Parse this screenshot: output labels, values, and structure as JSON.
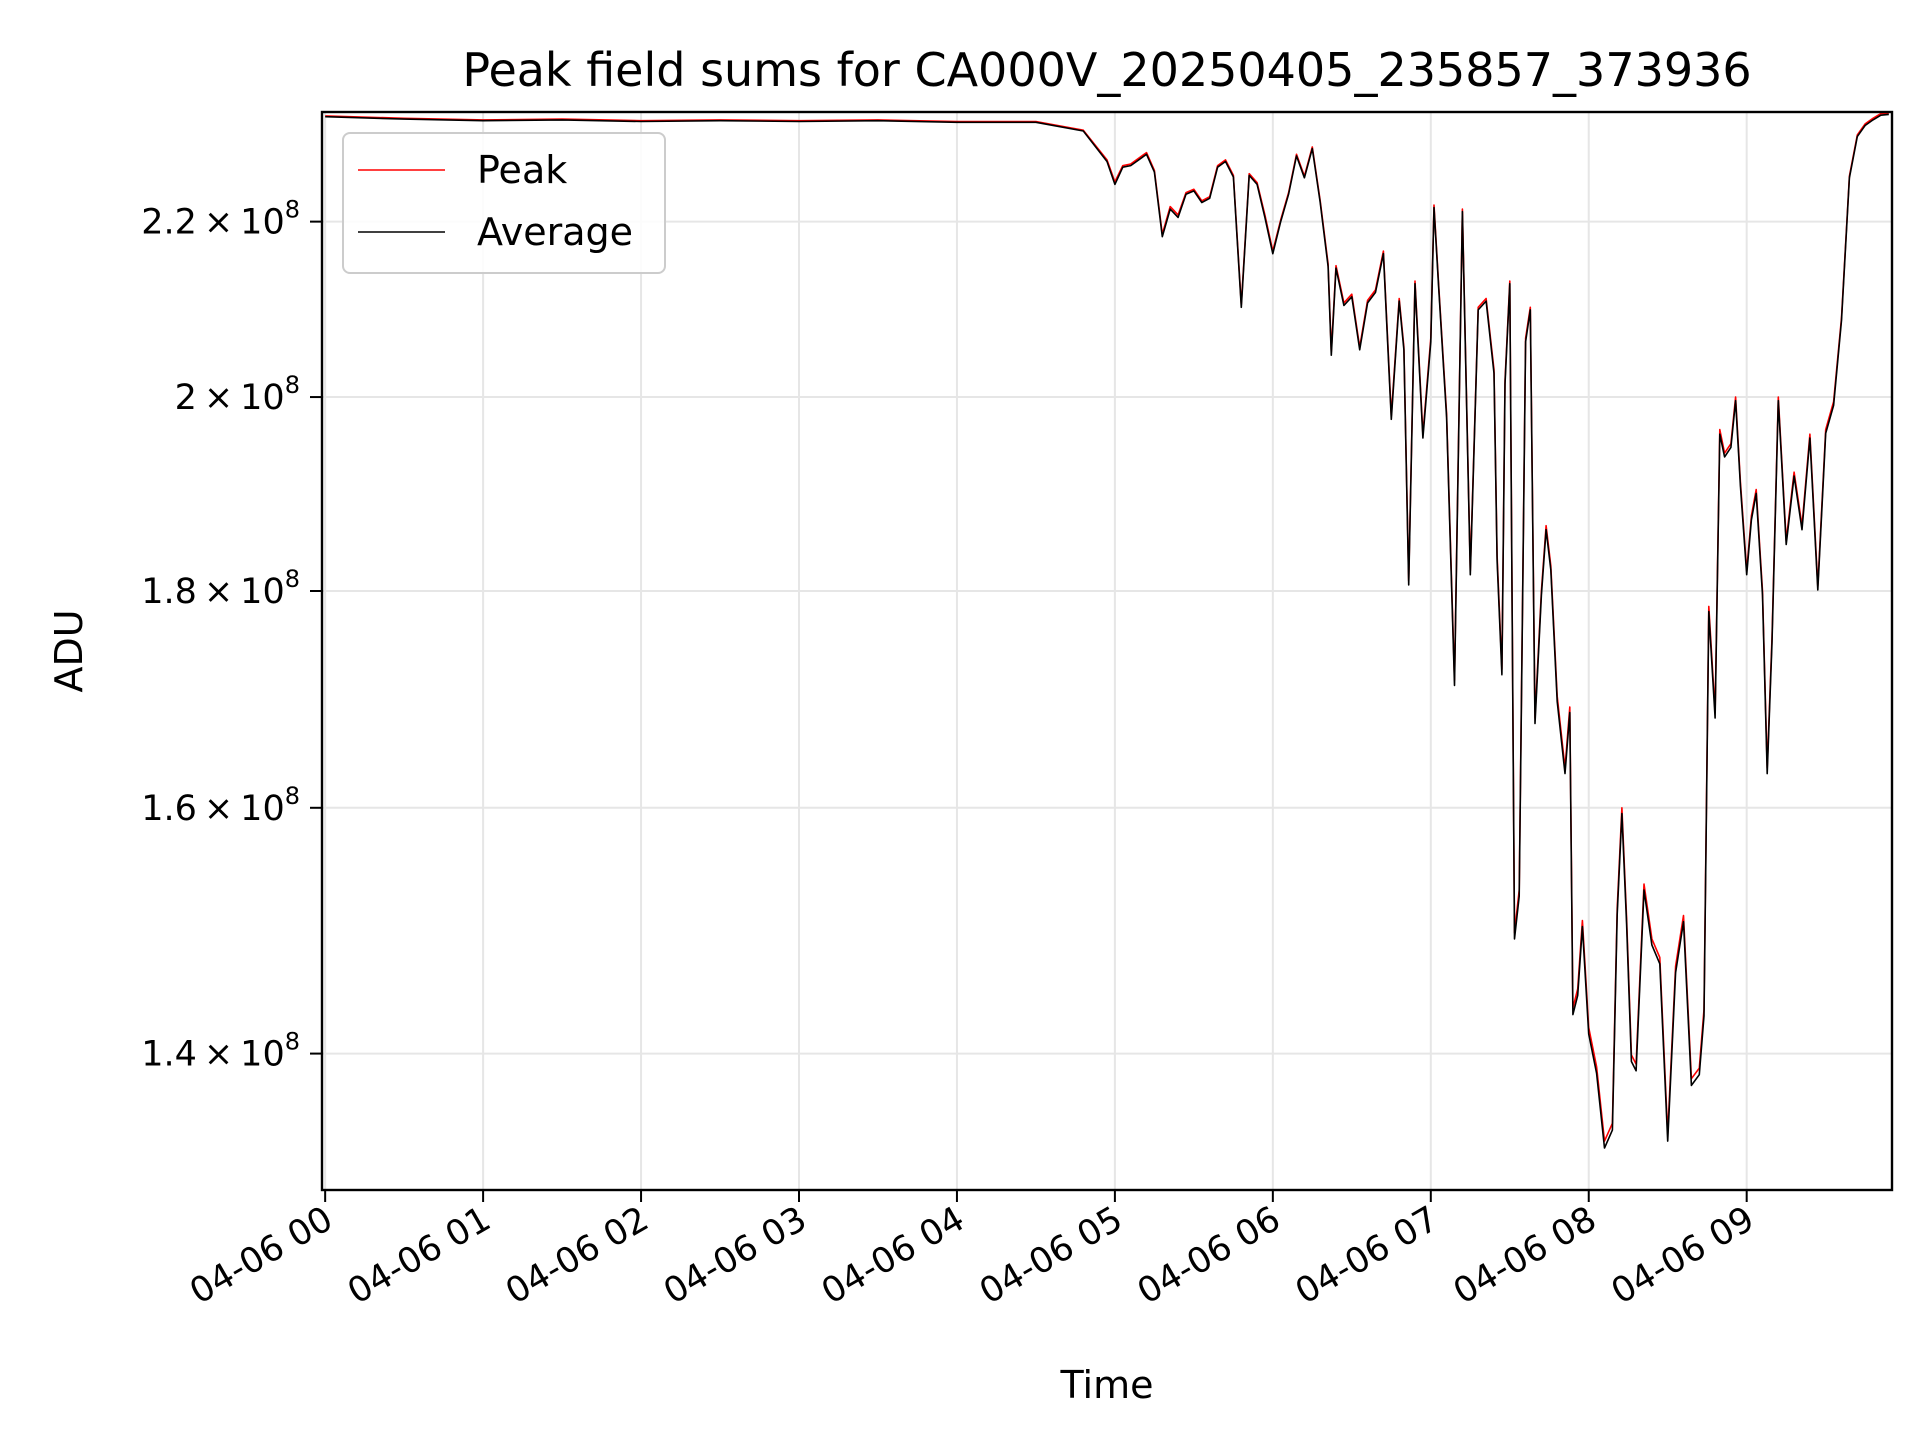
{
  "chart_data": {
    "type": "line",
    "title": "Peak field sums for CA000V_20250405_235857_373936",
    "xlabel": "Time",
    "ylabel": "ADU",
    "y_scale": "log",
    "xlim": [
      -0.02,
      9.92
    ],
    "ylim": [
      130000000,
      233500000
    ],
    "x_ticks": [
      {
        "value": 0,
        "label": "04-06 00"
      },
      {
        "value": 1,
        "label": "04-06 01"
      },
      {
        "value": 2,
        "label": "04-06 02"
      },
      {
        "value": 3,
        "label": "04-06 03"
      },
      {
        "value": 4,
        "label": "04-06 04"
      },
      {
        "value": 5,
        "label": "04-06 05"
      },
      {
        "value": 6,
        "label": "04-06 06"
      },
      {
        "value": 7,
        "label": "04-06 07"
      },
      {
        "value": 8,
        "label": "04-06 08"
      },
      {
        "value": 9,
        "label": "04-06 09"
      }
    ],
    "y_ticks": [
      {
        "value": 140000000,
        "base": "1.4",
        "exp": "8"
      },
      {
        "value": 160000000,
        "base": "1.6",
        "exp": "8"
      },
      {
        "value": 180000000,
        "base": "1.8",
        "exp": "8"
      },
      {
        "value": 200000000,
        "base": "2",
        "exp": "8"
      },
      {
        "value": 220000000,
        "base": "2.2",
        "exp": "8"
      }
    ],
    "grid": true,
    "legend_position": "upper left",
    "series": [
      {
        "name": "Peak",
        "color": "#ff0000",
        "x": [
          0,
          0.5,
          1,
          1.5,
          2,
          2.5,
          3,
          3.5,
          4,
          4.5,
          4.8,
          4.95,
          5.0,
          5.05,
          5.1,
          5.2,
          5.25,
          5.3,
          5.35,
          5.4,
          5.45,
          5.5,
          5.55,
          5.6,
          5.65,
          5.7,
          5.75,
          5.8,
          5.85,
          5.9,
          5.95,
          6.0,
          6.05,
          6.1,
          6.15,
          6.2,
          6.25,
          6.3,
          6.35,
          6.37,
          6.4,
          6.45,
          6.5,
          6.55,
          6.6,
          6.65,
          6.7,
          6.75,
          6.8,
          6.83,
          6.86,
          6.9,
          6.95,
          7.0,
          7.02,
          7.05,
          7.1,
          7.15,
          7.2,
          7.25,
          7.3,
          7.35,
          7.4,
          7.42,
          7.45,
          7.47,
          7.5,
          7.53,
          7.56,
          7.6,
          7.63,
          7.66,
          7.7,
          7.73,
          7.76,
          7.8,
          7.85,
          7.88,
          7.9,
          7.93,
          7.96,
          8.0,
          8.05,
          8.1,
          8.15,
          8.18,
          8.21,
          8.24,
          8.27,
          8.3,
          8.35,
          8.4,
          8.45,
          8.5,
          8.55,
          8.6,
          8.65,
          8.7,
          8.73,
          8.76,
          8.8,
          8.83,
          8.86,
          8.9,
          8.93,
          8.96,
          9.0,
          9.03,
          9.06,
          9.1,
          9.13,
          9.16,
          9.2,
          9.25,
          9.3,
          9.35,
          9.4,
          9.45,
          9.5,
          9.55,
          9.6,
          9.65,
          9.7,
          9.75,
          9.8,
          9.85,
          9.9
        ],
        "y": [
          233000000,
          232700000,
          232500000,
          232600000,
          232400000,
          232500000,
          232400000,
          232500000,
          232300000,
          232300000,
          231200000,
          227500000,
          224800000,
          226800000,
          227000000,
          228400000,
          226200000,
          218500000,
          221800000,
          220800000,
          223500000,
          223900000,
          222500000,
          223000000,
          226800000,
          227500000,
          225600000,
          210300000,
          225800000,
          224700000,
          220800000,
          216500000,
          220200000,
          223500000,
          228200000,
          225500000,
          229100000,
          222500000,
          215000000,
          205000000,
          214800000,
          210500000,
          211500000,
          205500000,
          210800000,
          212000000,
          216500000,
          198000000,
          211000000,
          205500000,
          181000000,
          213000000,
          196000000,
          206500000,
          222000000,
          212500000,
          198200000,
          171500000,
          221500000,
          182000000,
          210000000,
          211000000,
          203000000,
          183500000,
          172500000,
          201800000,
          213000000,
          149500000,
          153000000,
          206500000,
          210000000,
          168000000,
          180000000,
          186500000,
          182500000,
          170000000,
          163500000,
          169000000,
          143500000,
          145000000,
          150500000,
          142000000,
          139000000,
          133500000,
          134800000,
          151500000,
          160000000,
          150700000,
          139900000,
          139200000,
          153500000,
          149000000,
          147500000,
          134000000,
          146800000,
          150900000,
          138100000,
          138900000,
          143400000,
          178500000,
          168500000,
          196500000,
          194000000,
          195000000,
          200000000,
          191000000,
          182000000,
          187500000,
          190200000,
          180000000,
          163500000,
          175500000,
          200000000,
          185000000,
          192000000,
          186500000,
          196000000,
          180500000,
          196500000,
          199500000,
          208800000,
          225500000,
          230600000,
          232000000,
          232700000,
          233300000,
          233300000
        ]
      },
      {
        "name": "Average",
        "color": "#000000",
        "x": [
          0,
          0.5,
          1,
          1.5,
          2,
          2.5,
          3,
          3.5,
          4,
          4.5,
          4.8,
          4.95,
          5.0,
          5.05,
          5.1,
          5.2,
          5.25,
          5.3,
          5.35,
          5.4,
          5.45,
          5.5,
          5.55,
          5.6,
          5.65,
          5.7,
          5.75,
          5.8,
          5.85,
          5.9,
          5.95,
          6.0,
          6.05,
          6.1,
          6.15,
          6.2,
          6.25,
          6.3,
          6.35,
          6.37,
          6.4,
          6.45,
          6.5,
          6.55,
          6.6,
          6.65,
          6.7,
          6.75,
          6.8,
          6.83,
          6.86,
          6.9,
          6.95,
          7.0,
          7.02,
          7.05,
          7.1,
          7.15,
          7.2,
          7.25,
          7.3,
          7.35,
          7.4,
          7.42,
          7.45,
          7.47,
          7.5,
          7.53,
          7.56,
          7.6,
          7.63,
          7.66,
          7.7,
          7.73,
          7.76,
          7.8,
          7.85,
          7.88,
          7.9,
          7.93,
          7.96,
          8.0,
          8.05,
          8.1,
          8.15,
          8.18,
          8.21,
          8.24,
          8.27,
          8.3,
          8.35,
          8.4,
          8.45,
          8.5,
          8.55,
          8.6,
          8.65,
          8.7,
          8.73,
          8.76,
          8.8,
          8.83,
          8.86,
          8.9,
          8.93,
          8.96,
          9.0,
          9.03,
          9.06,
          9.1,
          9.13,
          9.16,
          9.2,
          9.25,
          9.3,
          9.35,
          9.4,
          9.45,
          9.5,
          9.55,
          9.6,
          9.65,
          9.7,
          9.75,
          9.8,
          9.85,
          9.9
        ],
        "y": [
          232900000,
          232600000,
          232400000,
          232500000,
          232300000,
          232400000,
          232300000,
          232400000,
          232200000,
          232200000,
          231100000,
          227300000,
          224500000,
          226600000,
          226800000,
          228200000,
          226000000,
          218200000,
          221500000,
          220500000,
          223300000,
          223700000,
          222300000,
          222800000,
          226600000,
          227300000,
          225400000,
          210000000,
          225600000,
          224500000,
          220500000,
          216200000,
          220000000,
          223300000,
          228000000,
          225300000,
          228900000,
          222300000,
          214700000,
          204600000,
          214500000,
          210200000,
          211200000,
          205200000,
          210500000,
          211700000,
          216200000,
          197600000,
          210700000,
          205200000,
          180600000,
          212700000,
          195600000,
          206100000,
          221700000,
          212200000,
          197800000,
          171000000,
          221200000,
          181600000,
          209700000,
          210700000,
          202600000,
          183000000,
          172000000,
          201400000,
          212700000,
          149000000,
          152500000,
          206100000,
          209700000,
          167500000,
          179600000,
          186100000,
          182100000,
          169500000,
          163000000,
          168500000,
          143000000,
          144500000,
          150000000,
          141500000,
          138500000,
          133000000,
          134300000,
          151000000,
          159500000,
          150200000,
          139400000,
          138700000,
          153000000,
          148500000,
          147000000,
          133500000,
          146300000,
          150400000,
          137600000,
          138400000,
          142900000,
          178000000,
          168000000,
          196000000,
          193600000,
          194600000,
          199600000,
          190600000,
          181600000,
          187100000,
          189800000,
          179600000,
          163000000,
          175000000,
          199600000,
          184600000,
          191600000,
          186100000,
          195600000,
          180100000,
          196100000,
          199100000,
          208500000,
          225300000,
          230400000,
          231800000,
          232500000,
          233100000,
          233200000
        ]
      }
    ]
  }
}
